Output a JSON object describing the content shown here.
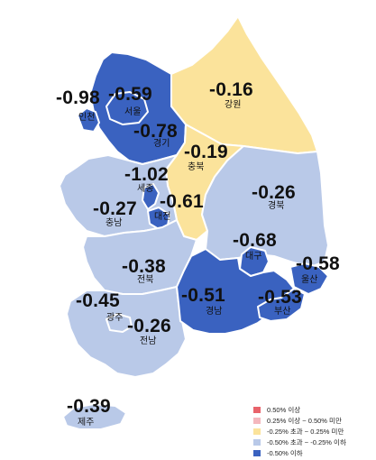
{
  "regions": [
    {
      "id": "incheon",
      "name": "인천",
      "value": "-0.98",
      "fill": "#3a62c0"
    },
    {
      "id": "seoul",
      "name": "서울",
      "value": "-0.59",
      "fill": "#3a62c0"
    },
    {
      "id": "gyeonggi",
      "name": "경기",
      "value": "-0.78",
      "fill": "#3a62c0"
    },
    {
      "id": "gangwon",
      "name": "강원",
      "value": "-0.16",
      "fill": "#fbe39b"
    },
    {
      "id": "chungbuk",
      "name": "충북",
      "value": "-0.19",
      "fill": "#fbe39b"
    },
    {
      "id": "sejong",
      "name": "세종",
      "value": "-1.02",
      "fill": "#3a62c0"
    },
    {
      "id": "chungnam",
      "name": "충남",
      "value": "-0.27",
      "fill": "#b9c9e8"
    },
    {
      "id": "daejeon",
      "name": "대전",
      "value": "-0.61",
      "fill": "#3a62c0"
    },
    {
      "id": "gyeongbuk",
      "name": "경북",
      "value": "-0.26",
      "fill": "#b9c9e8"
    },
    {
      "id": "daegu",
      "name": "대구",
      "value": "-0.68",
      "fill": "#3a62c0"
    },
    {
      "id": "ulsan",
      "name": "울산",
      "value": "-0.58",
      "fill": "#3a62c0"
    },
    {
      "id": "jeonbuk",
      "name": "전북",
      "value": "-0.38",
      "fill": "#b9c9e8"
    },
    {
      "id": "gwangju",
      "name": "광주",
      "value": "-0.45",
      "fill": "#b9c9e8"
    },
    {
      "id": "jeonnam",
      "name": "전남",
      "value": "-0.26",
      "fill": "#b9c9e8"
    },
    {
      "id": "gyeongnam",
      "name": "경남",
      "value": "-0.51",
      "fill": "#3a62c0"
    },
    {
      "id": "busan",
      "name": "부산",
      "value": "-0.53",
      "fill": "#3a62c0"
    },
    {
      "id": "jeju",
      "name": "제주",
      "value": "-0.39",
      "fill": "#b9c9e8"
    }
  ],
  "legend": [
    {
      "label": "0.50% 이상",
      "color": "#e8636b"
    },
    {
      "label": "0.25% 이상 ~ 0.50% 미만",
      "color": "#f4b7bd"
    },
    {
      "label": "-0.25% 초과 ~ 0.25% 미만",
      "color": "#fbe39b"
    },
    {
      "label": "-0.50% 초과 ~ -0.25% 이하",
      "color": "#b9c9e8"
    },
    {
      "label": "-0.50% 이하",
      "color": "#3a62c0"
    }
  ]
}
